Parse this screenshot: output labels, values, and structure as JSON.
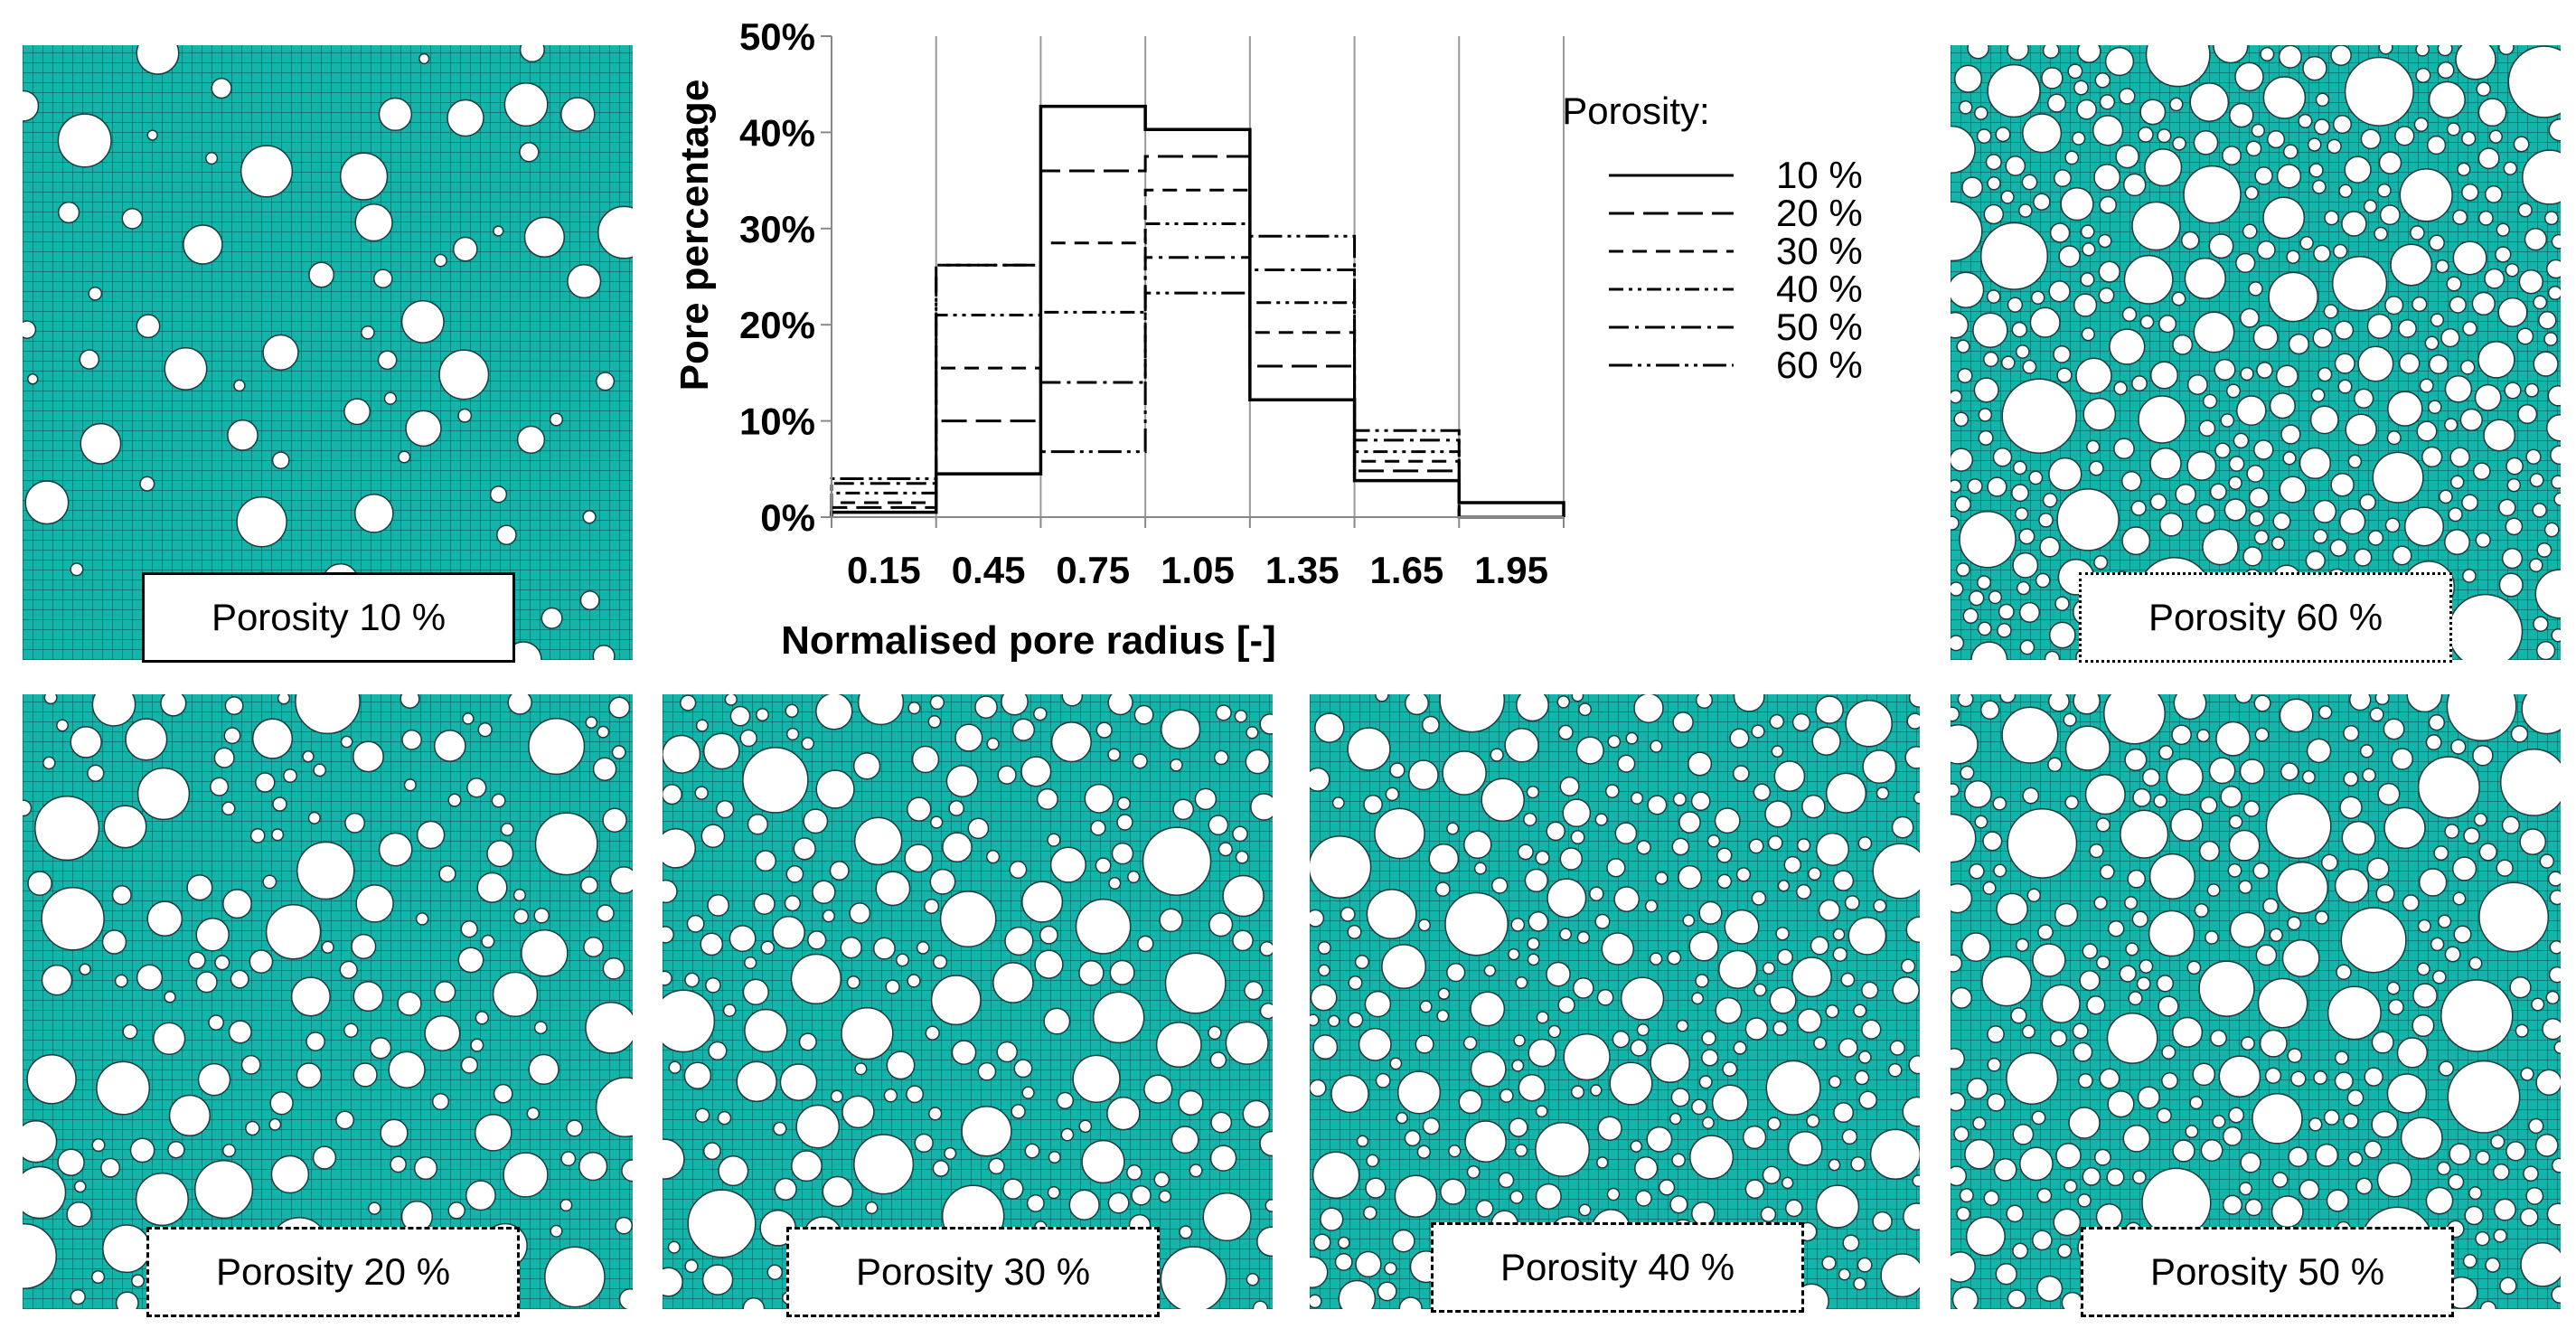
{
  "colors": {
    "mesh": "#13b5aa",
    "pore": "#ffffff"
  },
  "panels": [
    {
      "id": "p10",
      "label": "Porosity 10 %"
    },
    {
      "id": "p20",
      "label": "Porosity 20 %"
    },
    {
      "id": "p30",
      "label": "Porosity 30 %"
    },
    {
      "id": "p40",
      "label": "Porosity 40 %"
    },
    {
      "id": "p50",
      "label": "Porosity 50 %"
    },
    {
      "id": "p60",
      "label": "Porosity 60 %"
    }
  ],
  "chart_data": {
    "type": "bar",
    "title": "",
    "xlabel": "Normalised pore radius [-]",
    "ylabel": "Pore percentage",
    "categories": [
      "0.15",
      "0.45",
      "0.75",
      "1.05",
      "1.35",
      "1.65",
      "1.95"
    ],
    "y_ticks": [
      "0%",
      "10%",
      "20%",
      "30%",
      "40%",
      "50%"
    ],
    "ylim": [
      0,
      50
    ],
    "grid": "vertical",
    "legend_title": "Porosity:",
    "legend_position": "top-right",
    "series": [
      {
        "name": "10 %",
        "dash": "solid",
        "values": [
          0.5,
          4.5,
          42.7,
          40.3,
          12.2,
          3.8,
          1.5
        ]
      },
      {
        "name": "20 %",
        "dash": "longdash",
        "values": [
          1.0,
          10.0,
          36.0,
          37.5,
          15.7,
          4.8,
          0
        ]
      },
      {
        "name": "30 %",
        "dash": "dash",
        "values": [
          1.5,
          15.5,
          28.5,
          34.0,
          19.2,
          5.8,
          0
        ]
      },
      {
        "name": "40 %",
        "dash": "dashdotdot",
        "values": [
          2.5,
          21.0,
          21.3,
          30.5,
          22.3,
          6.8,
          0
        ]
      },
      {
        "name": "50 %",
        "dash": "dashdot",
        "values": [
          3.5,
          26.2,
          14.0,
          27.0,
          25.7,
          8.0,
          0
        ]
      },
      {
        "name": "60 %",
        "dash": "longdashdotdot",
        "values": [
          4.0,
          26.2,
          6.8,
          23.3,
          29.2,
          9.0,
          0
        ]
      }
    ]
  }
}
